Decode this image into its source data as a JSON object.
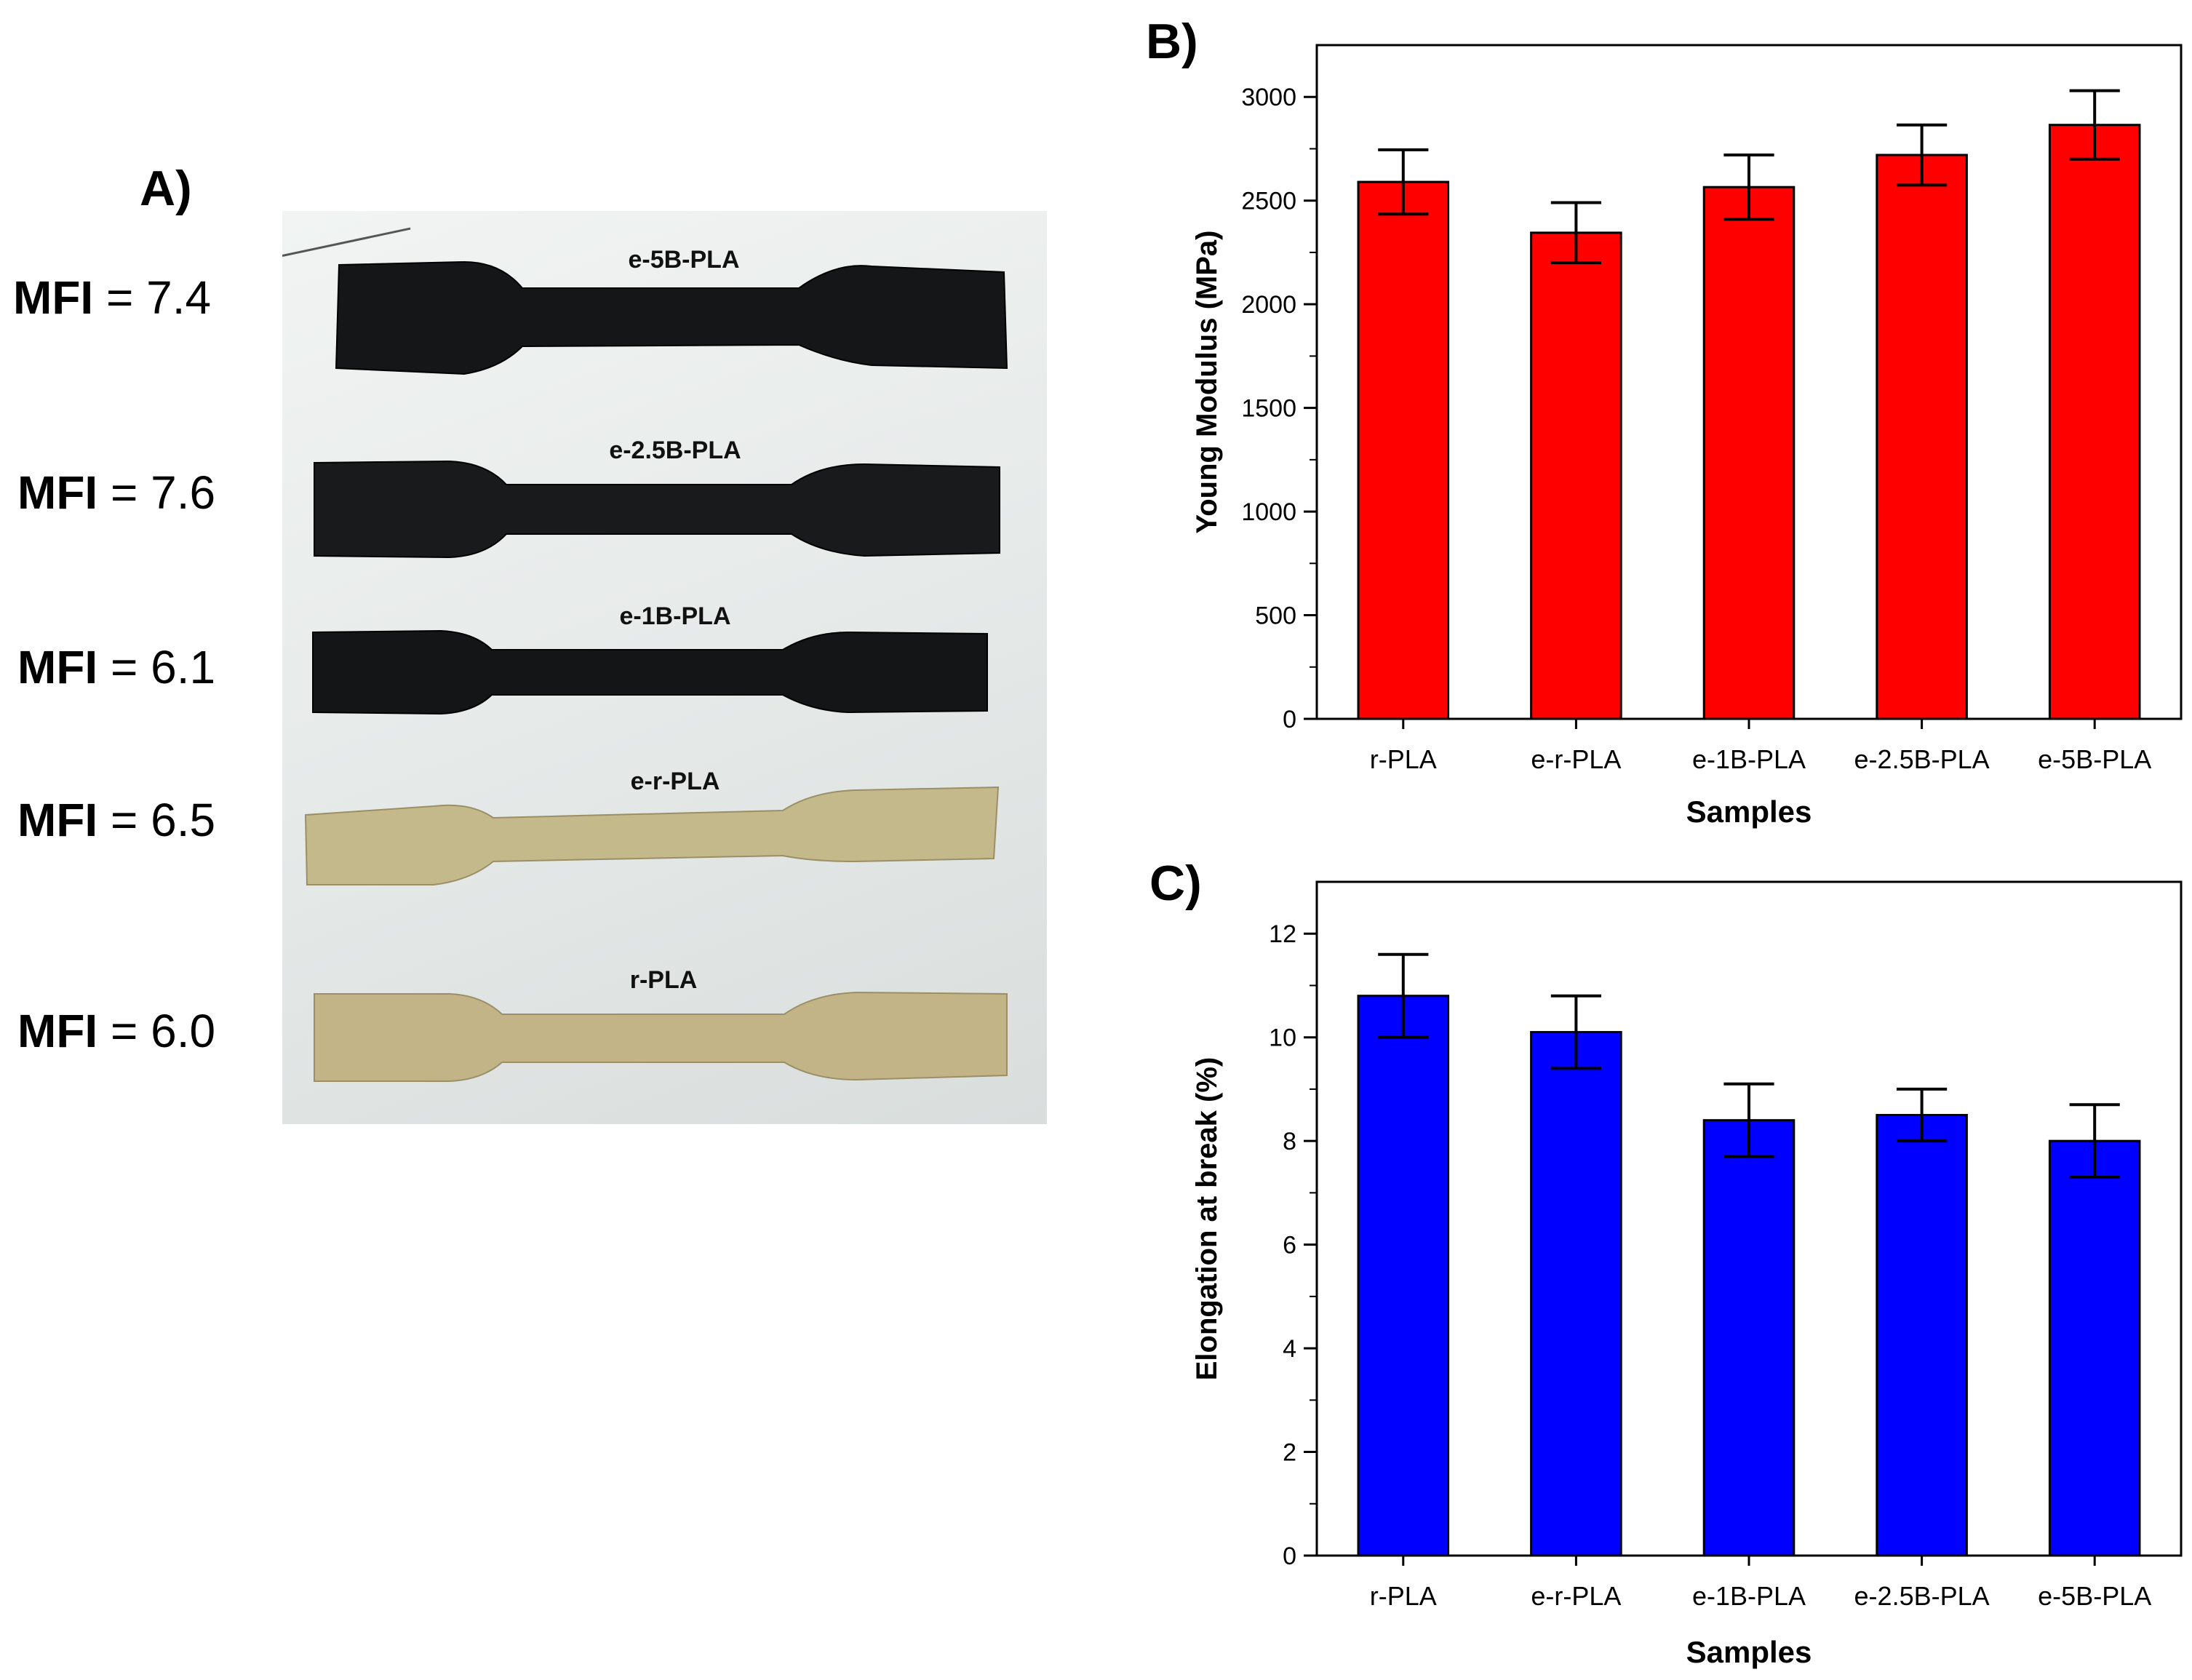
{
  "panel_a": {
    "letter": "A)",
    "mfi_rows": [
      {
        "key": "MFI",
        "value": "= 7.4"
      },
      {
        "key": "MFI",
        "value": "= 7.6"
      },
      {
        "key": "MFI",
        "value": "= 6.1"
      },
      {
        "key": "MFI",
        "value": "= 6.5"
      },
      {
        "key": "MFI",
        "value": "= 6.0"
      }
    ],
    "specimens": [
      {
        "label": "e-5B-PLA",
        "color": "#141618"
      },
      {
        "label": "e-2.5B-PLA",
        "color": "#181a1c"
      },
      {
        "label": "e-1B-PLA",
        "color": "#141517"
      },
      {
        "label": "e-r-PLA",
        "color": "#c4b98a"
      },
      {
        "label": "r-PLA",
        "color": "#c2b486"
      }
    ]
  },
  "chart_data": [
    {
      "panel_letter": "B)",
      "type": "bar",
      "categories": [
        "r-PLA",
        "e-r-PLA",
        "e-1B-PLA",
        "e-2.5B-PLA",
        "e-5B-PLA"
      ],
      "values": [
        2590,
        2345,
        2565,
        2720,
        2865
      ],
      "errors": [
        155,
        145,
        155,
        145,
        165
      ],
      "xlabel": "Samples",
      "ylabel": "Young Modulus (MPa)",
      "ylim": [
        0,
        3250
      ],
      "yticks": [
        0,
        500,
        1000,
        1500,
        2000,
        2500,
        3000
      ],
      "bar_color": "#ff0000",
      "grid": false
    },
    {
      "panel_letter": "C)",
      "type": "bar",
      "categories": [
        "r-PLA",
        "e-r-PLA",
        "e-1B-PLA",
        "e-2.5B-PLA",
        "e-5B-PLA"
      ],
      "values": [
        10.8,
        10.1,
        8.4,
        8.5,
        8.0
      ],
      "errors": [
        0.8,
        0.7,
        0.7,
        0.5,
        0.7
      ],
      "xlabel": "Samples",
      "ylabel": "Elongation at break (%)",
      "ylim": [
        0,
        13
      ],
      "yticks": [
        0,
        2,
        4,
        6,
        8,
        10,
        12
      ],
      "bar_color": "#0000ff",
      "grid": false
    }
  ]
}
